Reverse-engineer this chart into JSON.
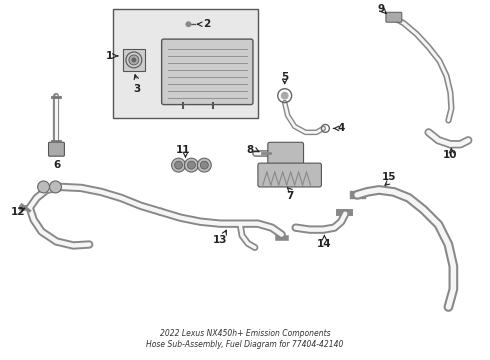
{
  "title": "2022 Lexus NX450h+ Emission Components\nHose Sub-Assembly, Fuel Diagram for 77404-42140",
  "background_color": "#ffffff",
  "line_color": "#555555",
  "label_color": "#222222",
  "figsize": [
    4.9,
    3.6
  ],
  "dpi": 100
}
